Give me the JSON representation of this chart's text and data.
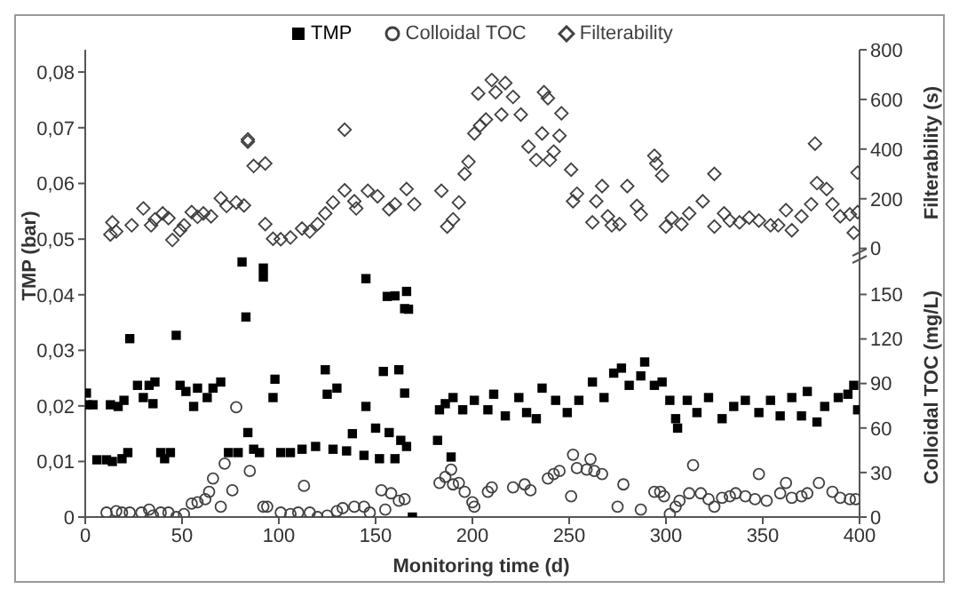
{
  "chart_data": [
    {
      "type": "scatter",
      "y2label": "Filterability (s)",
      "xlim": [
        0,
        400
      ],
      "ylim": [
        0.047,
        0.084
      ],
      "yticks": [
        {
          "value": 0.05,
          "label": "0,05"
        },
        {
          "value": 0.06,
          "label": "0,06"
        },
        {
          "value": 0.07,
          "label": "0,07"
        },
        {
          "value": 0.08,
          "label": "0,08"
        }
      ],
      "y2lim": [
        -30,
        800
      ],
      "y2ticks": [
        0,
        200,
        400,
        600,
        800
      ],
      "tick_labels": "y",
      "legend": "top",
      "grid": false,
      "series": [
        {
          "name": "Filterability",
          "color": "#404040",
          "axis": "y2",
          "marker": "diamond",
          "x": [
            13,
            14,
            16,
            24,
            30,
            34,
            36,
            40,
            43,
            45,
            49,
            51,
            55,
            58,
            61,
            65,
            70,
            73,
            78,
            82,
            84,
            84,
            87,
            93,
            93,
            97,
            101,
            106,
            112,
            116,
            120,
            124,
            128,
            134,
            134,
            139,
            140,
            146,
            151,
            157,
            160,
            166,
            170,
            184,
            187,
            190,
            193,
            196,
            198,
            201,
            203,
            204,
            207,
            210,
            212,
            215,
            217,
            221,
            225,
            229,
            233,
            236,
            237,
            239,
            240,
            242,
            245,
            246,
            251,
            252,
            254,
            262,
            264,
            267,
            270,
            272,
            276,
            280,
            285,
            287,
            294,
            295,
            298,
            300,
            303,
            308,
            312,
            319,
            325,
            325,
            330,
            333,
            338,
            343,
            348,
            354,
            358,
            362,
            365,
            370,
            375,
            377,
            378,
            383,
            386,
            390,
            395,
            397,
            399,
            399
          ],
          "values": [
            56,
            105,
            68,
            93,
            161,
            93,
            117,
            141,
            122,
            34,
            73,
            93,
            146,
            127,
            141,
            129,
            202,
            171,
            185,
            173,
            439,
            430,
            332,
            342,
            98,
            39,
            37,
            44,
            80,
            68,
            98,
            141,
            185,
            234,
            478,
            190,
            161,
            232,
            210,
            158,
            178,
            239,
            178,
            232,
            88,
            117,
            185,
            300,
            349,
            463,
            624,
            495,
            519,
            678,
            629,
            539,
            666,
            610,
            539,
            410,
            356,
            463,
            629,
            605,
            356,
            390,
            454,
            544,
            317,
            190,
            220,
            105,
            190,
            251,
            129,
            93,
            98,
            251,
            171,
            137,
            373,
            342,
            293,
            88,
            122,
            98,
            141,
            190,
            88,
            300,
            141,
            112,
            105,
            124,
            112,
            93,
            93,
            154,
            73,
            129,
            178,
            422,
            263,
            239,
            178,
            129,
            137,
            63,
            305,
            146
          ]
        }
      ]
    },
    {
      "type": "scatter",
      "xlabel": "Monitoring time (d)",
      "ylabel": "TMP (bar)",
      "y2label": "Colloidal TOC (mg/L)",
      "xlim": [
        0,
        400
      ],
      "xticks": [
        0,
        50,
        100,
        150,
        200,
        250,
        300,
        350,
        400
      ],
      "ylim": [
        0,
        0.047
      ],
      "yticks": [
        0,
        {
          "value": 0.01,
          "label": "0,01"
        },
        {
          "value": 0.02,
          "label": "0,02"
        },
        {
          "value": 0.03,
          "label": "0,03"
        },
        {
          "value": 0.04,
          "label": "0,04"
        }
      ],
      "y2lim": [
        0,
        176
      ],
      "y2ticks": [
        0,
        30,
        60,
        90,
        120,
        150
      ],
      "legend": "top",
      "grid": false,
      "series": [
        {
          "name": "TMP",
          "color": "#000000",
          "marker": "square",
          "x": [
            0.6,
            1,
            4,
            6,
            11,
            13,
            14,
            17,
            19,
            20,
            22,
            23,
            27,
            30,
            33,
            35,
            36,
            39,
            41,
            44,
            47,
            49,
            52,
            56,
            58,
            63,
            66,
            70,
            74,
            79,
            81,
            83,
            84,
            87,
            90,
            92,
            92,
            97,
            98,
            101,
            106,
            112,
            119,
            124,
            125,
            128,
            130,
            135,
            138,
            144,
            145,
            145,
            150,
            152,
            154,
            156,
            157,
            160,
            160,
            162,
            163,
            165,
            165,
            166,
            166,
            167,
            169,
            182,
            183,
            186,
            189,
            190,
            195,
            201,
            208,
            211,
            217,
            224,
            228,
            233,
            236,
            243,
            249,
            255,
            262,
            268,
            273,
            277,
            281,
            287,
            289,
            294,
            298,
            302,
            305,
            306,
            311,
            316,
            322,
            329,
            335,
            341,
            348,
            354,
            359,
            365,
            370,
            373,
            378,
            382,
            389,
            394,
            397,
            399
          ],
          "values": [
            0.0223,
            0.0202,
            0.0202,
            0.0103,
            0.0103,
            0.0202,
            0.01,
            0.0199,
            0.0105,
            0.021,
            0.0116,
            0.0321,
            0.0237,
            0.0215,
            0.0237,
            0.0204,
            0.0243,
            0.0116,
            0.0105,
            0.0116,
            0.0327,
            0.0237,
            0.0226,
            0.0199,
            0.0232,
            0.0215,
            0.0232,
            0.0243,
            0.0116,
            0.0116,
            0.0459,
            0.036,
            0.0152,
            0.0122,
            0.0116,
            0.0448,
            0.0432,
            0.0215,
            0.0248,
            0.0116,
            0.0116,
            0.0122,
            0.0127,
            0.0265,
            0.0221,
            0.0122,
            0.0232,
            0.0119,
            0.015,
            0.0111,
            0.0429,
            0.0199,
            0.016,
            0.0105,
            0.0262,
            0.0397,
            0.0152,
            0.0398,
            0.0105,
            0.0265,
            0.0138,
            0.0375,
            0.0223,
            0.0406,
            0.0127,
            0.0374,
            0,
            0.0138,
            0.0193,
            0.0204,
            0.0108,
            0.0215,
            0.0193,
            0.021,
            0.0193,
            0.0221,
            0.0182,
            0.0215,
            0.0188,
            0.0177,
            0.0232,
            0.021,
            0.0188,
            0.021,
            0.0243,
            0.0215,
            0.0259,
            0.0268,
            0.0237,
            0.0254,
            0.0279,
            0.0237,
            0.0243,
            0.021,
            0.0177,
            0.016,
            0.021,
            0.0188,
            0.0215,
            0.0177,
            0.0199,
            0.021,
            0.0188,
            0.021,
            0.0182,
            0.0215,
            0.0182,
            0.0226,
            0.0171,
            0.0199,
            0.0215,
            0.0221,
            0.0237,
            0.0193
          ]
        },
        {
          "name": "Colloidal TOC",
          "color": "#404040",
          "axis": "y2",
          "marker": "circle",
          "x": [
            11,
            16,
            19,
            23,
            29,
            33,
            35,
            39,
            43,
            47,
            51,
            55,
            58,
            62,
            64,
            66,
            70,
            72,
            76,
            78,
            85,
            92,
            94,
            101,
            106,
            110,
            113,
            116,
            120,
            125,
            130,
            133,
            139,
            144,
            147,
            153,
            155,
            158,
            162,
            165,
            183,
            186,
            189,
            190,
            193,
            196,
            200,
            201,
            208,
            210,
            221,
            227,
            230,
            239,
            242,
            245,
            251,
            252,
            254,
            259,
            261,
            263,
            267,
            275,
            278,
            287,
            294,
            297,
            299,
            302,
            305,
            307,
            312,
            314,
            318,
            322,
            325,
            329,
            333,
            336,
            341,
            346,
            348,
            352,
            359,
            362,
            365,
            370,
            373,
            379,
            386,
            390,
            395,
            398
          ],
          "values": [
            3,
            4,
            3,
            3,
            3,
            5,
            1,
            3,
            3,
            0,
            2,
            9,
            10,
            12,
            17,
            26,
            7,
            36,
            18,
            74,
            31,
            7,
            7,
            3,
            2,
            3,
            21,
            3,
            0,
            1,
            4,
            6,
            7,
            7,
            3,
            18,
            5,
            16,
            11,
            12,
            23,
            27,
            32,
            22,
            23,
            17,
            10,
            7,
            17,
            20,
            20,
            22,
            18,
            26,
            29,
            31,
            14,
            42,
            33,
            32,
            39,
            31,
            29,
            7,
            22,
            5,
            17,
            17,
            14,
            2,
            7,
            11,
            16,
            35,
            16,
            12,
            7,
            13,
            14,
            16,
            14,
            12,
            29,
            11,
            16,
            23,
            13,
            14,
            16,
            23,
            17,
            13,
            12,
            12
          ]
        }
      ]
    }
  ]
}
